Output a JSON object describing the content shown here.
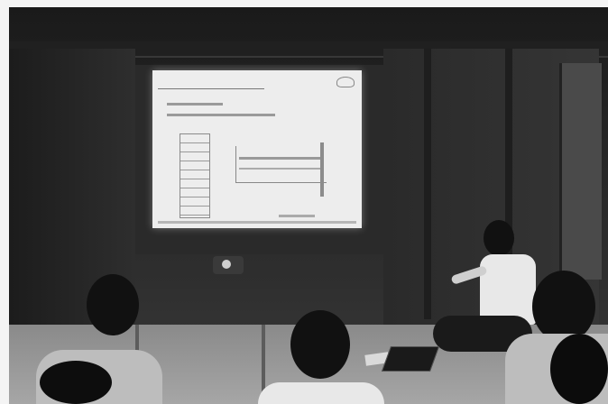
{
  "scene": {
    "type": "photo",
    "subject": "",
    "slide": {
      "title": "",
      "lines": []
    }
  },
  "colors": {
    "room": "#262626",
    "screen": "#ededed",
    "floor": "#a6a6a6"
  }
}
